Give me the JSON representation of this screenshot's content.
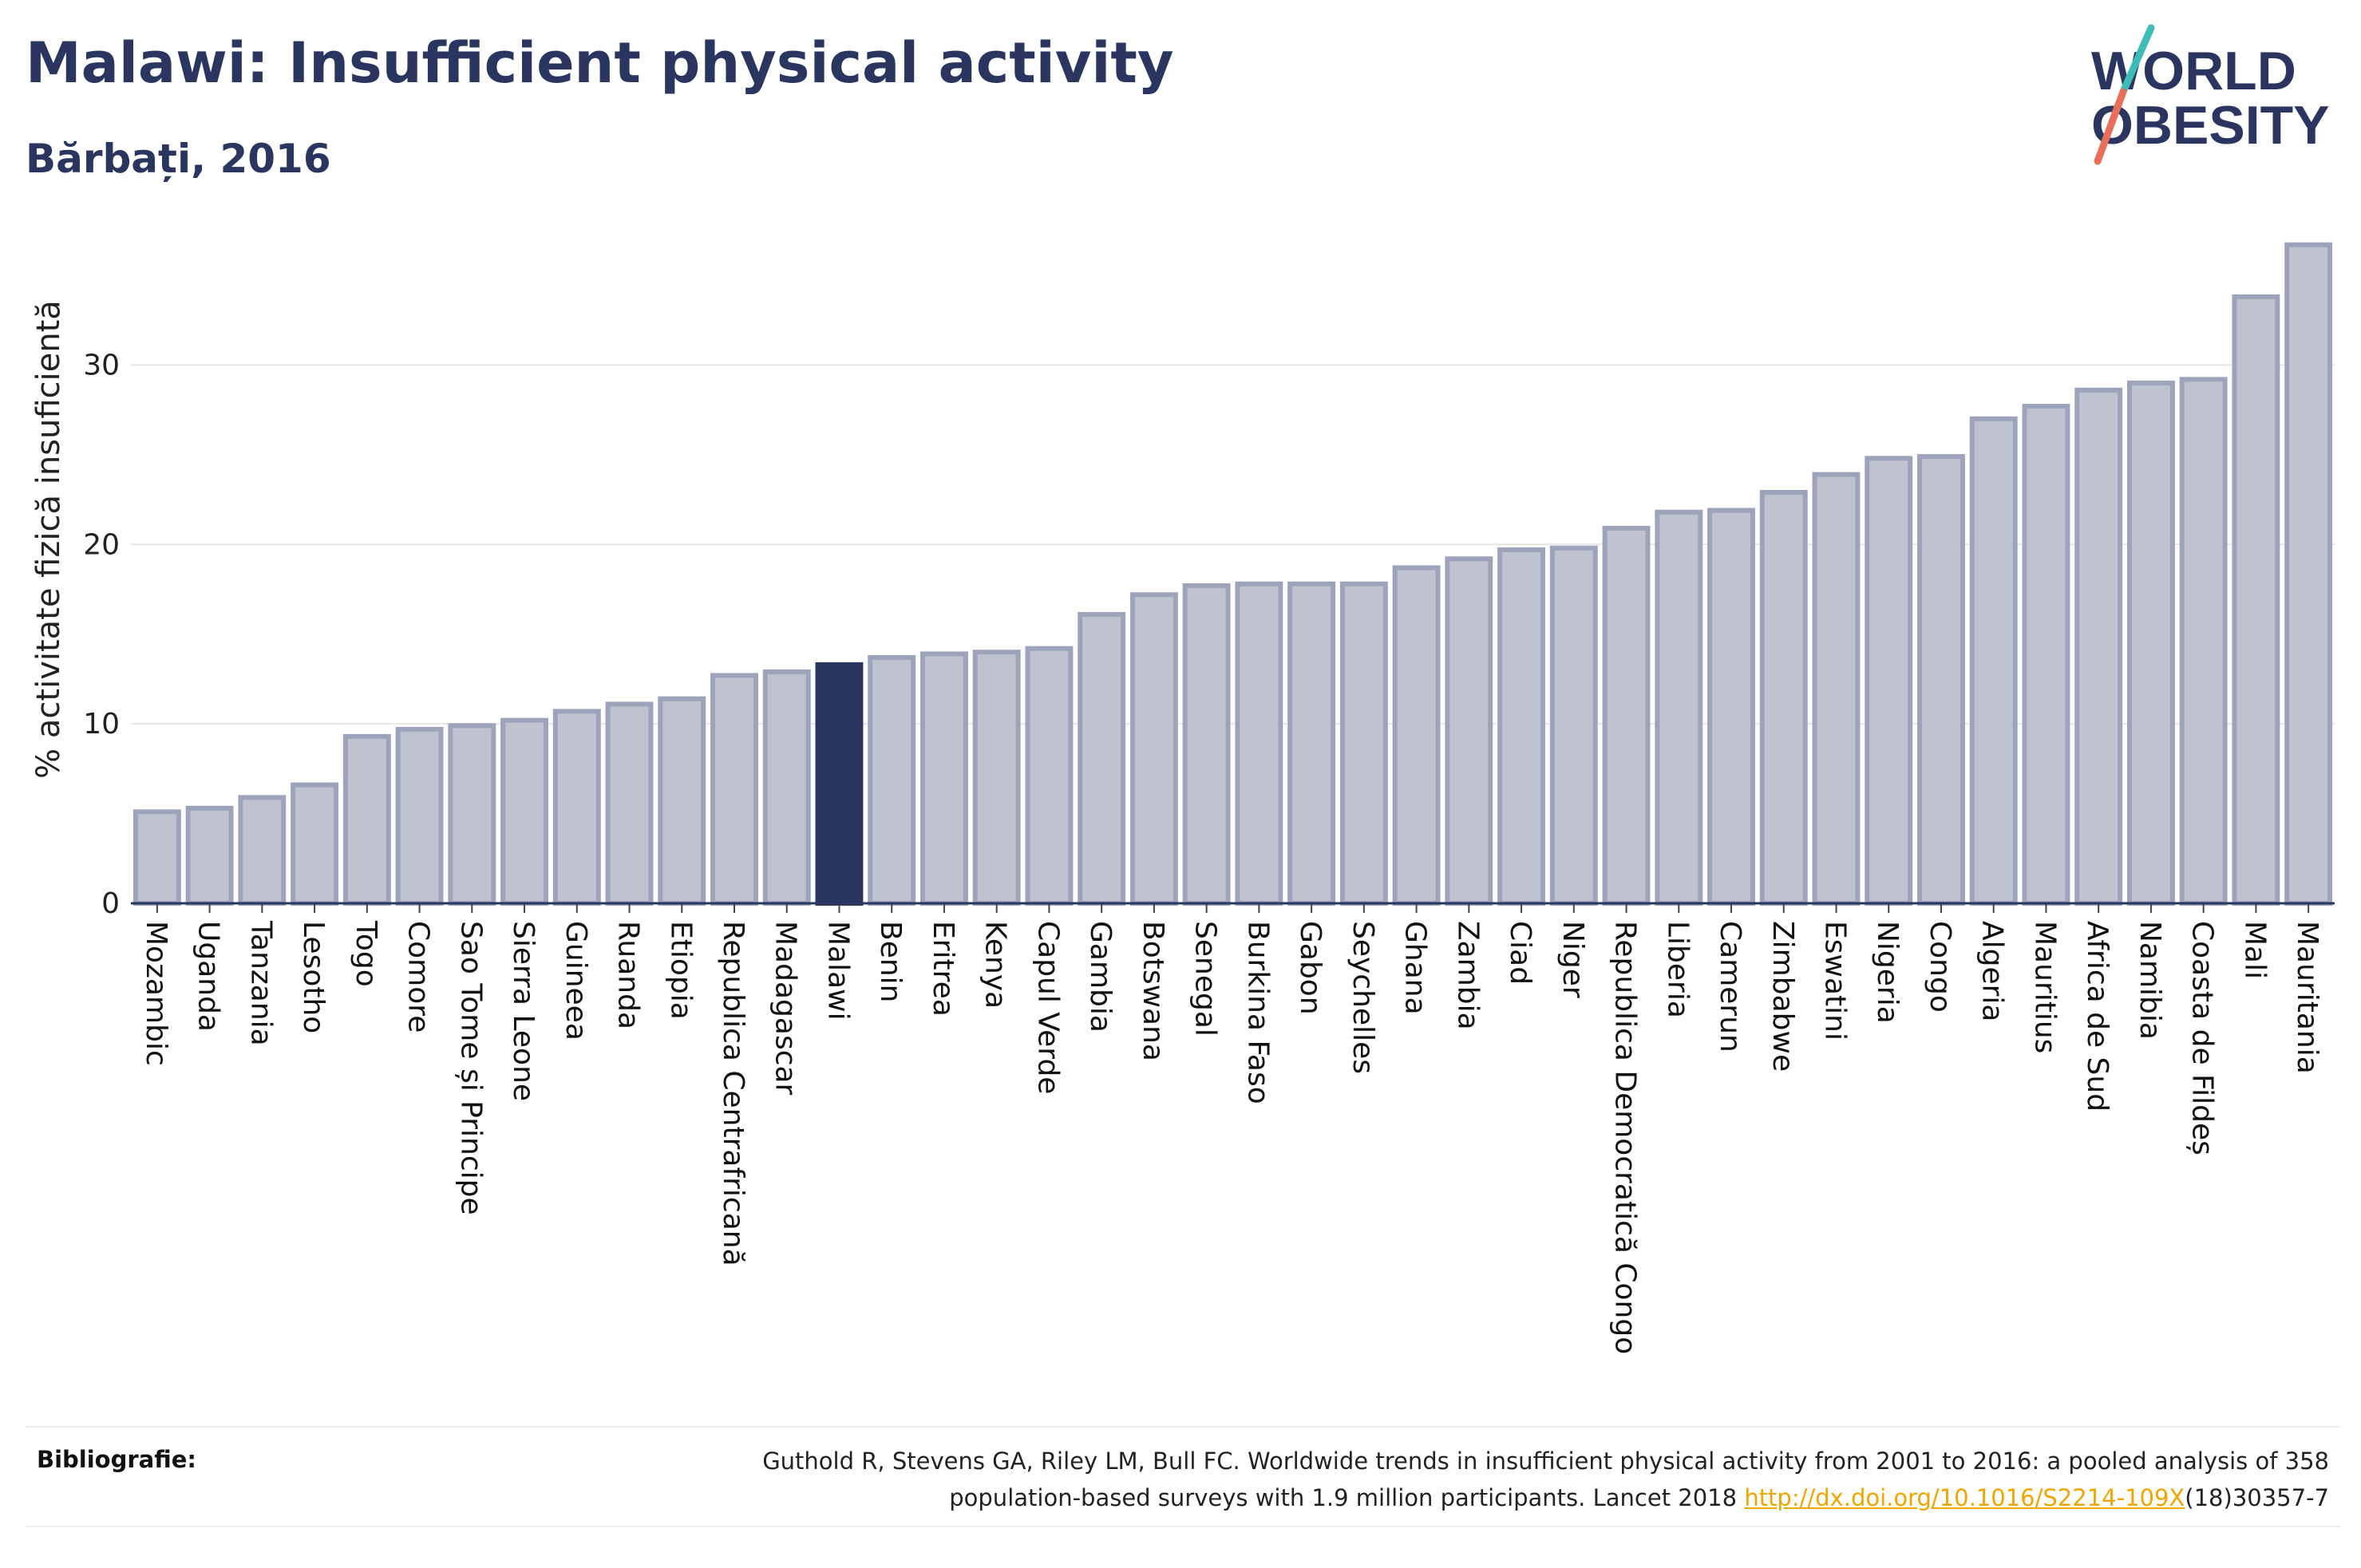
{
  "title": "Malawi: Insufficient physical activity",
  "subtitle": "Bărbați, 2016",
  "logo": {
    "line1": "WORLD",
    "line2": "OBESITY"
  },
  "colors": {
    "title": "#2a3560",
    "bar": "#bfc3d0",
    "bar_border": "#9da3ba",
    "highlight": "#2a3560",
    "grid": "#e6e6e6",
    "axis": "#2a3560",
    "logo_teal": "#3dbcb8",
    "logo_coral": "#e8705a",
    "link": "#f0a500"
  },
  "chart_data": {
    "type": "bar",
    "ylabel": "% activitate fizică insuficientă",
    "ylim": [
      0,
      37
    ],
    "yticks": [
      0,
      10,
      20,
      30
    ],
    "grid": true,
    "highlight": "Malawi",
    "categories": [
      "Mozambic",
      "Uganda",
      "Tanzania",
      "Lesotho",
      "Togo",
      "Comore",
      "Sao Tome și Principe",
      "Sierra Leone",
      "Guineea",
      "Ruanda",
      "Etiopia",
      "Republica Centrafricană",
      "Madagascar",
      "Malawi",
      "Benin",
      "Eritrea",
      "Kenya",
      "Capul Verde",
      "Gambia",
      "Botswana",
      "Senegal",
      "Burkina Faso",
      "Gabon",
      "Seychelles",
      "Ghana",
      "Zambia",
      "Ciad",
      "Niger",
      "Republica Democratică Congo",
      "Liberia",
      "Camerun",
      "Zimbabwe",
      "Eswatini",
      "Nigeria",
      "Congo",
      "Algeria",
      "Mauritius",
      "Africa de Sud",
      "Namibia",
      "Coasta de Fildeș",
      "Mali",
      "Mauritania"
    ],
    "values": [
      5.1,
      5.3,
      5.9,
      6.6,
      9.3,
      9.7,
      9.9,
      10.2,
      10.7,
      11.1,
      11.4,
      12.7,
      12.9,
      13.3,
      13.7,
      13.9,
      14.0,
      14.2,
      16.1,
      17.2,
      17.7,
      17.8,
      17.8,
      17.8,
      18.7,
      19.2,
      19.7,
      19.8,
      20.9,
      21.8,
      21.9,
      22.9,
      23.9,
      24.8,
      24.9,
      27.0,
      27.7,
      28.6,
      29.0,
      29.2,
      33.8,
      36.7
    ]
  },
  "footer": {
    "label": "Bibliografie:",
    "text1": "Guthold R, Stevens GA, Riley LM, Bull FC. Worldwide trends in insufficient physical activity from 2001 to 2016: a pooled analysis of 358",
    "text2": "population-based surveys with 1.9 million participants. Lancet 2018 ",
    "link": "http://dx.doi.org/10.1016/S2214-109X",
    "text3": "(18)30357-7"
  }
}
